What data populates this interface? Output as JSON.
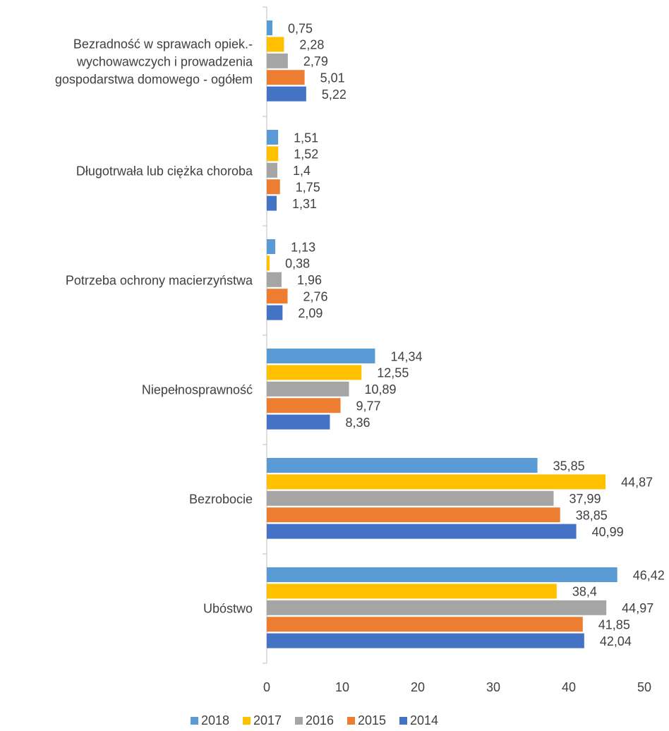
{
  "chart_data": {
    "type": "hbar",
    "categories": [
      "Bezradność w sprawach opiek.-\nwychowawczych i prowadzenia\ngospodarstwa domowego - ogółem",
      "Długotrwała lub ciężka choroba",
      "Potrzeba ochrony macierzyństwa",
      "Niepełnosprawność",
      "Bezrobocie",
      "Ubóstwo"
    ],
    "series": [
      {
        "name": "2018",
        "color": "#5b9bd5",
        "values": [
          0.75,
          1.51,
          1.13,
          14.34,
          35.85,
          46.42
        ],
        "value_labels": [
          "0,75",
          "1,51",
          "1,13",
          "14,34",
          "35,85",
          "46,42"
        ]
      },
      {
        "name": "2017",
        "color": "#ffc000",
        "values": [
          2.28,
          1.52,
          0.38,
          12.55,
          44.87,
          38.4
        ],
        "value_labels": [
          "2,28",
          "1,52",
          "0,38",
          "12,55",
          "44,87",
          "38,4"
        ]
      },
      {
        "name": "2016",
        "color": "#a5a5a5",
        "values": [
          2.79,
          1.4,
          1.96,
          10.89,
          37.99,
          44.97
        ],
        "value_labels": [
          "2,79",
          "1,4",
          "1,96",
          "10,89",
          "37,99",
          "44,97"
        ]
      },
      {
        "name": "2015",
        "color": "#ed7d31",
        "values": [
          5.01,
          1.75,
          2.76,
          9.77,
          38.85,
          41.85
        ],
        "value_labels": [
          "5,01",
          "1,75",
          "2,76",
          "9,77",
          "38,85",
          "41,85"
        ]
      },
      {
        "name": "2014",
        "color": "#4472c4",
        "values": [
          5.22,
          1.31,
          2.09,
          8.36,
          40.99,
          42.04
        ],
        "value_labels": [
          "5,22",
          "1,31",
          "2,09",
          "8,36",
          "40,99",
          "42,04"
        ]
      }
    ],
    "xlim": [
      0,
      50
    ],
    "xticks": [
      0,
      10,
      20,
      30,
      40,
      50
    ],
    "grid": false,
    "legend": "bottom"
  }
}
